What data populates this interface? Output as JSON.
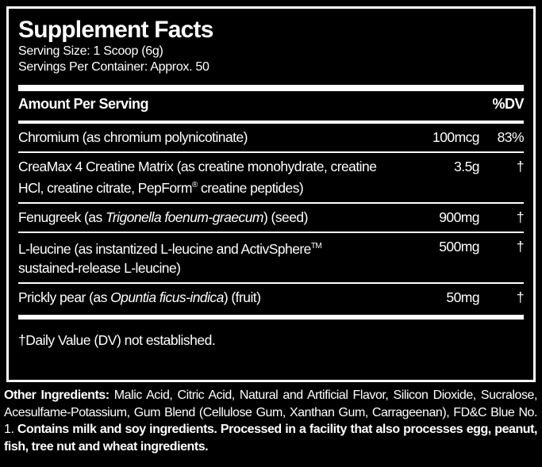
{
  "header": {
    "title": "Supplement Facts",
    "serving_size": "Serving Size: 1 Scoop (6g)",
    "servings_per_container": "Servings Per Container: Approx. 50"
  },
  "table": {
    "column_headers": [
      "Amount Per Serving",
      "%DV"
    ],
    "rows": [
      {
        "name": "Chromium (as chromium polynicotinate)",
        "amount": "100mcg",
        "dv": "83%"
      },
      {
        "name": [
          "CreaMax 4 Creatine Matrix (as creatine monohydrate, creatine HCl, creatine citrate, PepForm",
          "®",
          " creatine peptides)"
        ],
        "amount": "3.5g",
        "dv": "†"
      },
      {
        "name": [
          "Fenugreek (as ",
          "Trigonella foenum-graecum",
          ") (seed)"
        ],
        "amount": "900mg",
        "dv": "†"
      },
      {
        "name": [
          "L-leucine (as instantized L-leucine and ActivSphere",
          "TM",
          " sustained-release L-leucine)"
        ],
        "amount": "500mg",
        "dv": "†"
      },
      {
        "name": [
          "Prickly pear (as ",
          "Opuntia ficus-indica",
          ") (fruit)"
        ],
        "amount": "50mg",
        "dv": "†"
      }
    ]
  },
  "footnote": "†Daily Value (DV) not established.",
  "other_ingredients": [
    "Other Ingredients:",
    " Malic Acid, Citric Acid, Natural and Artificial Flavor, Silicon Dioxide, Sucralose, Acesulfame-Potassium, Gum Blend (Cellulose Gum, Xanthan Gum, Carrageenan), FD&C Blue No. 1. ",
    "Contains milk and soy ingredients. Processed in a facility that also processes egg, peanut, fish, tree nut and wheat ingredients."
  ]
}
